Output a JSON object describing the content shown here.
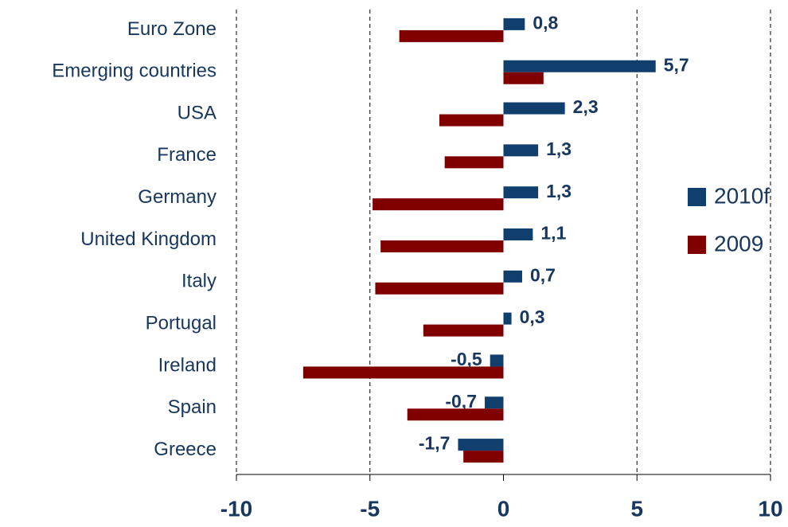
{
  "chart_data": {
    "type": "hbar",
    "categories": [
      "Euro Zone",
      "Emerging countries",
      "USA",
      "France",
      "Germany",
      "United Kingdom",
      "Italy",
      "Portugal",
      "Ireland",
      "Spain",
      "Greece"
    ],
    "series": [
      {
        "name": "2010f",
        "color": "#103f6e",
        "values": [
          0.8,
          5.7,
          2.3,
          1.3,
          1.3,
          1.1,
          0.7,
          0.3,
          -0.5,
          -0.7,
          -1.7
        ],
        "value_labels": [
          "0,8",
          "5,7",
          "2,3",
          "1,3",
          "1,3",
          "1,1",
          "0,7",
          "0,3",
          "-0,5",
          "-0,7",
          "-1,7"
        ]
      },
      {
        "name": "2009",
        "color": "#800000",
        "values": [
          -3.9,
          1.5,
          -2.4,
          -2.2,
          -4.9,
          -4.6,
          -4.8,
          -3.0,
          -7.5,
          -3.6,
          -1.5
        ]
      }
    ],
    "xlim": [
      -10,
      10
    ],
    "xticks": [
      -10,
      -5,
      0,
      5,
      10
    ],
    "grid": true,
    "legend": "right"
  }
}
